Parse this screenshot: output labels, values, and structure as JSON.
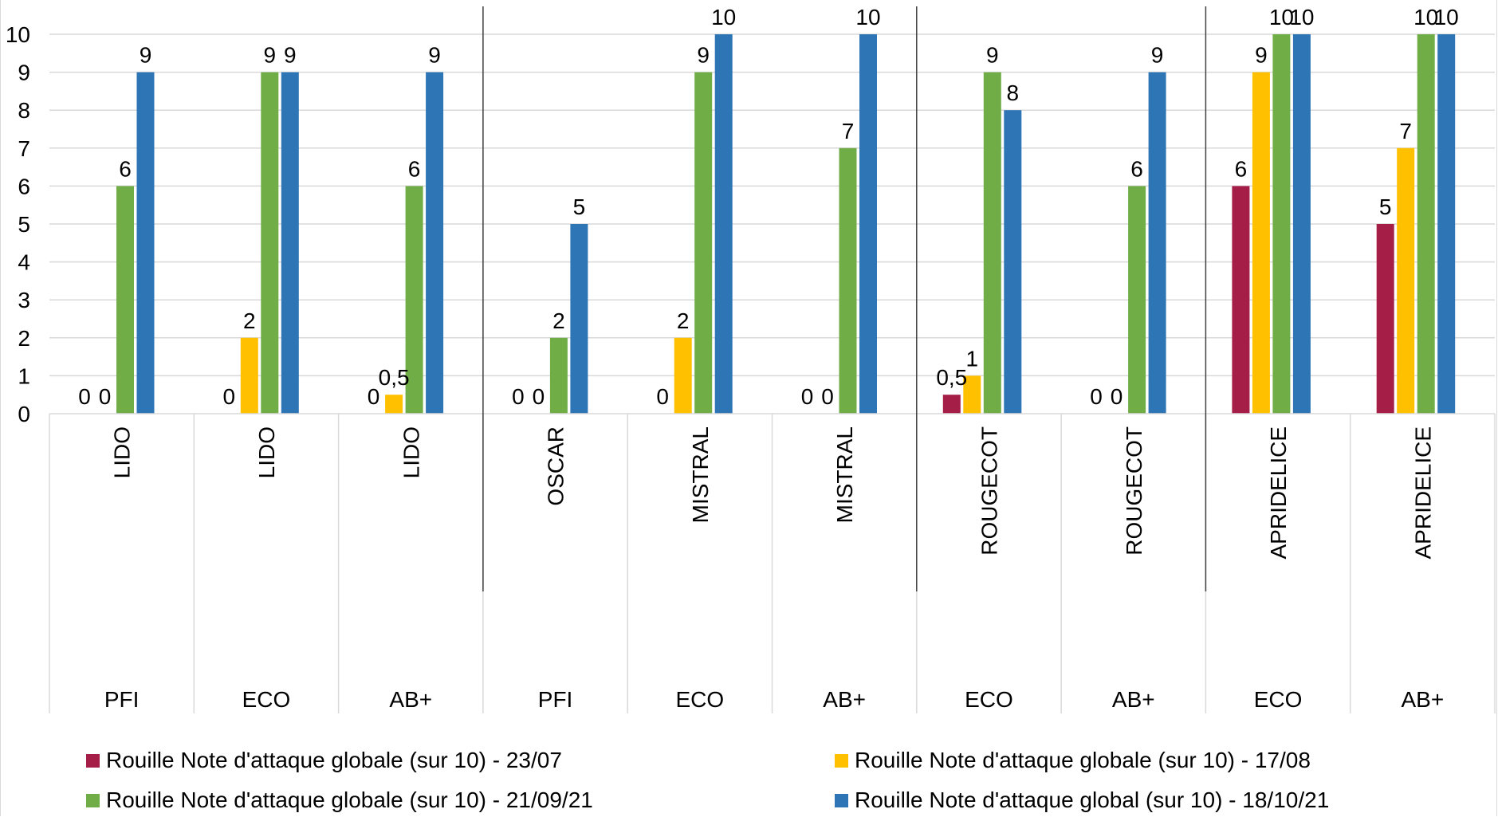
{
  "chart_data": {
    "type": "bar",
    "title": "",
    "xlabel": "",
    "ylabel": "",
    "ylim": [
      0,
      10
    ],
    "yticks": [
      "0",
      "1",
      "2",
      "3",
      "4",
      "5",
      "6",
      "7",
      "8",
      "9",
      "10"
    ],
    "grid": true,
    "legend_position": "bottom",
    "categories": [
      {
        "variety": "LIDO",
        "system": "PFI"
      },
      {
        "variety": "LIDO",
        "system": "ECO"
      },
      {
        "variety": "LIDO",
        "system": "AB+"
      },
      {
        "variety": "OSCAR",
        "system": "PFI"
      },
      {
        "variety": "MISTRAL",
        "system": "ECO"
      },
      {
        "variety": "MISTRAL",
        "system": "AB+"
      },
      {
        "variety": "ROUGECOT",
        "system": "ECO"
      },
      {
        "variety": "ROUGECOT",
        "system": "AB+"
      },
      {
        "variety": "APRIDELICE",
        "system": "ECO"
      },
      {
        "variety": "APRIDELICE",
        "system": "AB+"
      }
    ],
    "group_separators_after": [
      2,
      5,
      7
    ],
    "series": [
      {
        "name": "Rouille Note d'attaque globale (sur 10) - 23/07",
        "color": "#A51E47",
        "values": [
          0,
          0,
          0,
          0,
          0,
          0,
          0.5,
          0,
          6,
          5
        ],
        "labels": [
          "0",
          "0",
          "0",
          "0",
          "0",
          "0",
          "0,5",
          "0",
          "6",
          "5"
        ]
      },
      {
        "name": "Rouille Note d'attaque globale (sur 10) - 17/08",
        "color": "#FFC000",
        "values": [
          0,
          2,
          0.5,
          0,
          2,
          0,
          1,
          0,
          9,
          7
        ],
        "labels": [
          "0",
          "2",
          "0,5",
          "0",
          "2",
          "0",
          "1",
          "0",
          "9",
          "7"
        ]
      },
      {
        "name": "Rouille Note d'attaque globale (sur 10) - 21/09/21",
        "color": "#70AD47",
        "values": [
          6,
          9,
          6,
          2,
          9,
          7,
          9,
          6,
          10,
          10
        ],
        "labels": [
          "6",
          "9",
          "6",
          "2",
          "9",
          "7",
          "9",
          "6",
          "10",
          "10"
        ]
      },
      {
        "name": "Rouille Note d'attaque global (sur 10) - 18/10/21",
        "color": "#2E75B6",
        "values": [
          9,
          9,
          9,
          5,
          10,
          10,
          8,
          9,
          10,
          10
        ],
        "labels": [
          "9",
          "9",
          "9",
          "5",
          "10",
          "10",
          "8",
          "9",
          "10",
          "10"
        ]
      }
    ]
  }
}
